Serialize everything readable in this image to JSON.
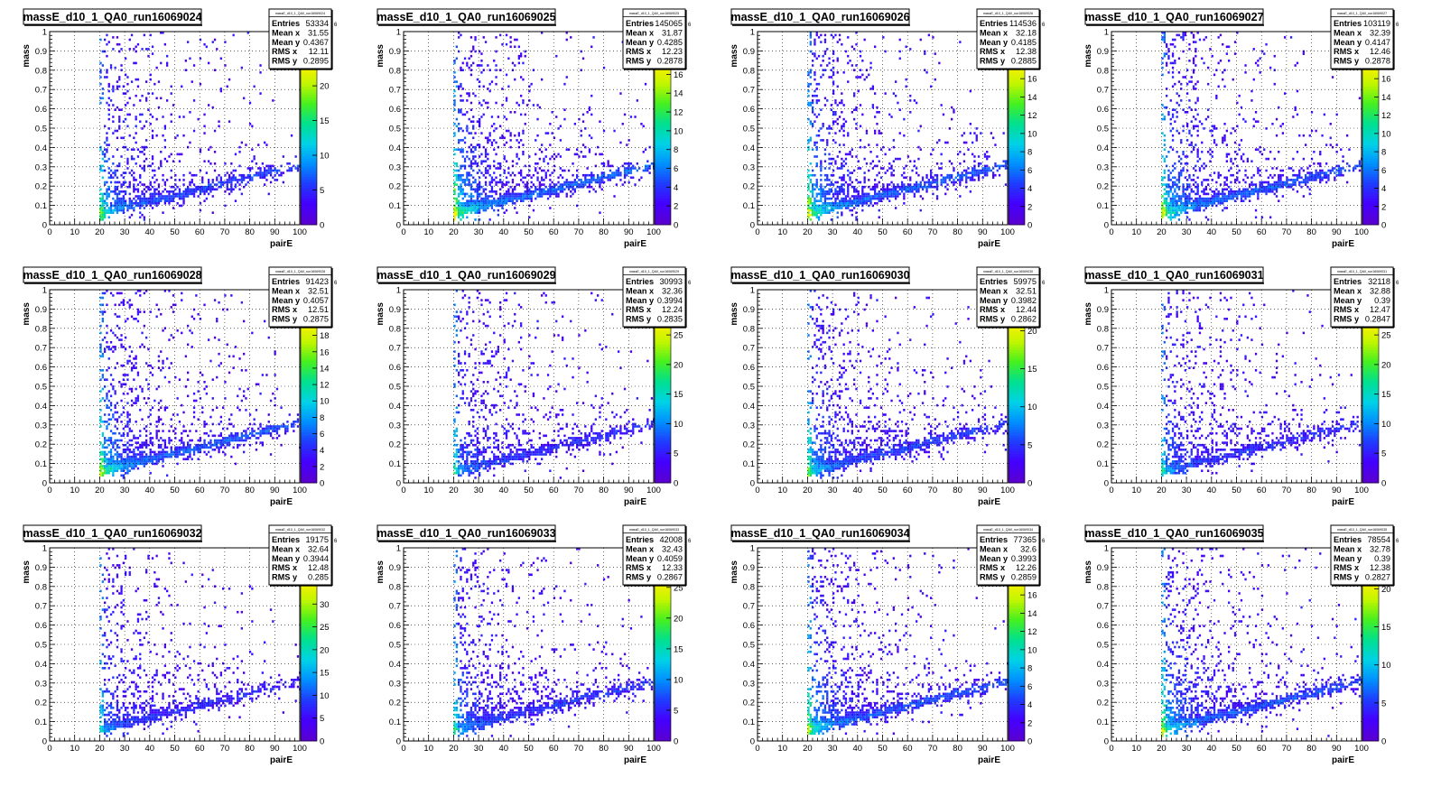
{
  "panels": [
    {
      "title": "massE_d10_1_QA0_run16069024",
      "statsTitle": "massE_d10_1_QA0_run16069024",
      "stats": {
        "Entries": "53334",
        "Mean x": "31.55",
        "Mean y": "0.4367",
        "RMS x": "12.11",
        "RMS y": "0.2895"
      },
      "zmax": 23,
      "zticks": [
        5,
        10,
        15,
        20
      ],
      "zlabels": [
        "5",
        "10",
        "15",
        "20"
      ],
      "density": 0.7,
      "hot": 0.6
    },
    {
      "title": "massE_d10_1_QA0_run16069025",
      "statsTitle": "massE_d10_1_QA0_run16069025",
      "stats": {
        "Entries": "145065",
        "Mean x": "31.87",
        "Mean y": "0.4285",
        "RMS x": "12.23",
        "RMS y": "0.2878"
      },
      "zmax": 17,
      "zticks": [
        2,
        4,
        6,
        8,
        10,
        12,
        14,
        16
      ],
      "zlabels": [
        "2",
        "4",
        "6",
        "8",
        "10",
        "12",
        "14",
        "16"
      ],
      "density": 1.0,
      "hot": 0.85
    },
    {
      "title": "massE_d10_1_QA0_run16069026",
      "statsTitle": "massE_d10_1_QA0_run16069026",
      "stats": {
        "Entries": "114536",
        "Mean x": "32.18",
        "Mean y": "0.4185",
        "RMS x": "12.38",
        "RMS y": "0.2885"
      },
      "zmax": 17.5,
      "zticks": [
        2,
        4,
        6,
        8,
        10,
        12,
        14,
        16
      ],
      "zlabels": [
        "2",
        "4",
        "6",
        "8",
        "10",
        "12",
        "14",
        "16"
      ],
      "density": 0.95,
      "hot": 0.8
    },
    {
      "title": "massE_d10_1_QA0_run16069027",
      "statsTitle": "massE_d10_1_QA0_run16069027",
      "stats": {
        "Entries": "103119",
        "Mean x": "32.39",
        "Mean y": "0.4147",
        "RMS x": "12.46",
        "RMS y": "0.2878"
      },
      "zmax": 17.5,
      "zticks": [
        2,
        4,
        6,
        8,
        10,
        12,
        14,
        16
      ],
      "zlabels": [
        "2",
        "4",
        "6",
        "8",
        "10",
        "12",
        "14",
        "16"
      ],
      "density": 0.92,
      "hot": 0.78
    },
    {
      "title": "massE_d10_1_QA0_run16069028",
      "statsTitle": "massE_d10_1_QA0_run16069028",
      "stats": {
        "Entries": "91423",
        "Mean x": "32.51",
        "Mean y": "0.4057",
        "RMS x": "12.51",
        "RMS y": "0.2875"
      },
      "zmax": 19.5,
      "zticks": [
        2,
        4,
        6,
        8,
        10,
        12,
        14,
        16,
        18
      ],
      "zlabels": [
        "2",
        "4",
        "6",
        "8",
        "10",
        "12",
        "14",
        "16",
        "18"
      ],
      "density": 0.9,
      "hot": 0.75
    },
    {
      "title": "massE_d10_1_QA0_run16069029",
      "statsTitle": "massE_d10_1_QA0_run16069029",
      "stats": {
        "Entries": "30993",
        "Mean x": "32.36",
        "Mean y": "0.3994",
        "RMS x": "12.24",
        "RMS y": "0.2835"
      },
      "zmax": 27,
      "zticks": [
        5,
        10,
        15,
        20,
        25
      ],
      "zlabels": [
        "5",
        "10",
        "15",
        "20",
        "25"
      ],
      "density": 0.55,
      "hot": 0.4
    },
    {
      "title": "massE_d10_1_QA0_run16069030",
      "statsTitle": "massE_d10_1_QA0_run16069030",
      "stats": {
        "Entries": "59975",
        "Mean x": "32.51",
        "Mean y": "0.3982",
        "RMS x": "12.44",
        "RMS y": "0.2862"
      },
      "zmax": 21,
      "zticks": [
        5,
        10,
        15,
        20
      ],
      "zlabels": [
        "5",
        "10",
        "15",
        "20"
      ],
      "density": 0.75,
      "hot": 0.55
    },
    {
      "title": "massE_d10_1_QA0_run16069031",
      "statsTitle": "massE_d10_1_QA0_run16069031",
      "stats": {
        "Entries": "32118",
        "Mean x": "32.88",
        "Mean y": "0.39",
        "RMS x": "12.47",
        "RMS y": "0.2847"
      },
      "zmax": 27,
      "zticks": [
        5,
        10,
        15,
        20,
        25
      ],
      "zlabels": [
        "5",
        "10",
        "15",
        "20",
        "25"
      ],
      "density": 0.55,
      "hot": 0.4
    },
    {
      "title": "massE_d10_1_QA0_run16069032",
      "statsTitle": "massE_d10_1_QA0_run16069032",
      "stats": {
        "Entries": "19175",
        "Mean x": "32.64",
        "Mean y": "0.3944",
        "RMS x": "12.48",
        "RMS y": "0.285"
      },
      "zmax": 35,
      "zticks": [
        5,
        10,
        15,
        20,
        25,
        30
      ],
      "zlabels": [
        "5",
        "10",
        "15",
        "20",
        "25",
        "30"
      ],
      "density": 0.45,
      "hot": 0.35
    },
    {
      "title": "massE_d10_1_QA0_run16069033",
      "statsTitle": "massE_d10_1_QA0_run16069033",
      "stats": {
        "Entries": "42008",
        "Mean x": "32.43",
        "Mean y": "0.4059",
        "RMS x": "12.33",
        "RMS y": "0.2867"
      },
      "zmax": 26,
      "zticks": [
        5,
        10,
        15,
        20,
        25
      ],
      "zlabels": [
        "5",
        "10",
        "15",
        "20",
        "25"
      ],
      "density": 0.65,
      "hot": 0.45
    },
    {
      "title": "massE_d10_1_QA0_run16069034",
      "statsTitle": "massE_d10_1_QA0_run16069034",
      "stats": {
        "Entries": "77365",
        "Mean x": "32.6",
        "Mean y": "0.3993",
        "RMS x": "12.26",
        "RMS y": "0.2859"
      },
      "zmax": 17.5,
      "zticks": [
        2,
        4,
        6,
        8,
        10,
        12,
        14,
        16
      ],
      "zlabels": [
        "2",
        "4",
        "6",
        "8",
        "10",
        "12",
        "14",
        "16"
      ],
      "density": 0.85,
      "hot": 0.7
    },
    {
      "title": "massE_d10_1_QA0_run16069035",
      "statsTitle": "massE_d10_1_QA0_run16069035",
      "stats": {
        "Entries": "78554",
        "Mean x": "32.78",
        "Mean y": "0.39",
        "RMS x": "12.38",
        "RMS y": "0.2827"
      },
      "zmax": 21,
      "zticks": [
        5,
        10,
        15,
        20
      ],
      "zlabels": [
        "5",
        "10",
        "15",
        "20"
      ],
      "density": 0.85,
      "hot": 0.7
    }
  ],
  "axes": {
    "xlabel": "pairE",
    "ylabel": "mass",
    "xlim": [
      0,
      100
    ],
    "ylim": [
      0,
      1
    ],
    "xticks": [
      0,
      10,
      20,
      30,
      40,
      50,
      60,
      70,
      80,
      90,
      100
    ],
    "xticklabels": [
      "0",
      "10",
      "20",
      "30",
      "40",
      "50",
      "60",
      "70",
      "80",
      "90",
      "100"
    ],
    "yticks": [
      0,
      0.1,
      0.2,
      0.3,
      0.4,
      0.5,
      0.6,
      0.7,
      0.8,
      0.9,
      1
    ],
    "yticklabels": [
      "0",
      "0.1",
      "0.2",
      "0.3",
      "0.4",
      "0.5",
      "0.6",
      "0.7",
      "0.8",
      "0.9",
      "1"
    ],
    "statKeys": [
      "Entries",
      "Mean x",
      "Mean y",
      "RMS x",
      "RMS y"
    ]
  },
  "colors": {
    "background": "#ffffff",
    "frame": "#000000",
    "grid": "#000000",
    "palette": [
      "#5a00d0",
      "#4400ff",
      "#1f3cff",
      "#0090ff",
      "#00d2e6",
      "#00e090",
      "#45f020",
      "#c2f500",
      "#ffef00"
    ]
  },
  "chart_data": {
    "type": "heatmap",
    "layout": "3 rows x 4 columns of 2D histograms",
    "xlabel": "pairE",
    "ylabel": "mass",
    "xlim": [
      0,
      100
    ],
    "ylim": [
      0,
      1
    ],
    "grid": true,
    "x_threshold": 20,
    "band": {
      "description": "dense diagonal band",
      "mass_at_pairE_20": 0.07,
      "mass_at_pairE_100": 0.31
    },
    "series": [
      {
        "name": "massE_d10_1_QA0_run16069024",
        "entries": 53334
      },
      {
        "name": "massE_d10_1_QA0_run16069025",
        "entries": 145065
      },
      {
        "name": "massE_d10_1_QA0_run16069026",
        "entries": 114536
      },
      {
        "name": "massE_d10_1_QA0_run16069027",
        "entries": 103119
      },
      {
        "name": "massE_d10_1_QA0_run16069028",
        "entries": 91423
      },
      {
        "name": "massE_d10_1_QA0_run16069029",
        "entries": 30993
      },
      {
        "name": "massE_d10_1_QA0_run16069030",
        "entries": 59975
      },
      {
        "name": "massE_d10_1_QA0_run16069031",
        "entries": 32118
      },
      {
        "name": "massE_d10_1_QA0_run16069032",
        "entries": 19175
      },
      {
        "name": "massE_d10_1_QA0_run16069033",
        "entries": 42008
      },
      {
        "name": "massE_d10_1_QA0_run16069034",
        "entries": 77365
      },
      {
        "name": "massE_d10_1_QA0_run16069035",
        "entries": 78554
      }
    ]
  }
}
